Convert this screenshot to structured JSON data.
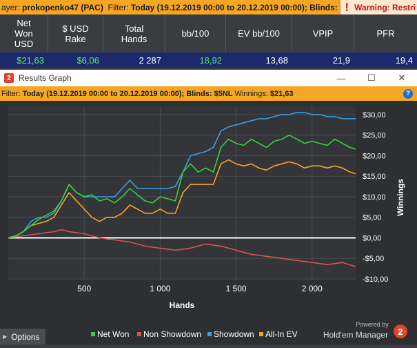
{
  "topbar": {
    "player_label": "ayer:",
    "player": "prokopenko47 (PAC)",
    "filter_label": "Filter:",
    "filter": "Today (19.12.2019 00:00 to 20.12.2019 00:00); Blinds: $5NL",
    "warning": "Warning: Restri"
  },
  "stats": {
    "headers": [
      "Net\nWon\nUSD",
      "$ USD\nRake",
      "Total\nHands",
      "bb/100",
      "EV bb/100",
      "VPIP",
      "PFR"
    ],
    "values": [
      "$21,63",
      "$6,06",
      "2 287",
      "18,92",
      "13,68",
      "21,9",
      "19,4"
    ]
  },
  "window": {
    "title": "Results Graph",
    "minimize": "—",
    "maximize": "☐",
    "close": "✕"
  },
  "filterbar": {
    "label": "Filter:",
    "text": "Today (19.12.2019 00:00 to 20.12.2019 00:00); Blinds: $5NL",
    "winnings_label": "Winnings:",
    "winnings": "$21,63"
  },
  "bottom": {
    "options_label": "Options",
    "powered_by": "Powered by",
    "brand": "Hold'em Manager",
    "brand_badge": "2"
  },
  "colors": {
    "net_won": "#33d43a",
    "non_showdown": "#e05050",
    "showdown": "#3a9ee8",
    "all_in_ev": "#f5a623",
    "zero_line": "#ffffff"
  },
  "chart_data": {
    "type": "line",
    "xlabel": "Hands",
    "ylabel": "Winnings",
    "xlim": [
      0,
      2287
    ],
    "ylim": [
      -10,
      32
    ],
    "x_ticks": [
      500,
      1000,
      1500,
      2000
    ],
    "x_tick_labels": [
      "500",
      "1 000",
      "1 500",
      "2 000"
    ],
    "y_ticks": [
      30,
      25,
      20,
      15,
      10,
      5,
      0,
      -5,
      -10
    ],
    "y_tick_labels": [
      "$30,00",
      "$25,00",
      "$20,00",
      "$15,00",
      "$10,00",
      "$5,00",
      "$0,00",
      "-$5,00",
      "-$10,00"
    ],
    "grid": true,
    "legend_placement": "bottom",
    "series": [
      {
        "name": "Net Won",
        "x": [
          0,
          50,
          100,
          150,
          200,
          250,
          300,
          350,
          400,
          450,
          500,
          550,
          600,
          650,
          700,
          750,
          800,
          850,
          900,
          950,
          1000,
          1050,
          1100,
          1150,
          1200,
          1250,
          1300,
          1350,
          1400,
          1450,
          1500,
          1550,
          1600,
          1650,
          1700,
          1750,
          1800,
          1850,
          1900,
          1950,
          2000,
          2050,
          2100,
          2150,
          2200,
          2250,
          2287
        ],
        "y": [
          0,
          0.5,
          1.5,
          3,
          4.5,
          5.5,
          6.5,
          9,
          13,
          11,
          10,
          10.5,
          9,
          9.5,
          8.5,
          10,
          12,
          10.5,
          9,
          8.5,
          10,
          9.5,
          9,
          16,
          18,
          16,
          17,
          16,
          22,
          24,
          23,
          22.5,
          24,
          23,
          22,
          23.5,
          24,
          25,
          24,
          23,
          23.5,
          23,
          22.5,
          24,
          23,
          22,
          21.6
        ]
      },
      {
        "name": "Non Showdown",
        "x": [
          0,
          100,
          200,
          300,
          350,
          400,
          500,
          600,
          700,
          800,
          900,
          1000,
          1100,
          1200,
          1300,
          1400,
          1500,
          1600,
          1700,
          1800,
          1900,
          2000,
          2100,
          2200,
          2287
        ],
        "y": [
          0,
          0.5,
          1,
          1.5,
          2,
          1.5,
          1,
          0,
          -0.5,
          -1,
          -2,
          -2.5,
          -3,
          -2.5,
          -1.5,
          -2,
          -3,
          -4,
          -4.5,
          -5,
          -5.5,
          -6,
          -6.5,
          -6,
          -7
        ]
      },
      {
        "name": "Showdown",
        "x": [
          0,
          50,
          100,
          150,
          200,
          250,
          300,
          350,
          400,
          450,
          500,
          550,
          600,
          650,
          700,
          750,
          800,
          850,
          900,
          950,
          1000,
          1050,
          1100,
          1150,
          1200,
          1250,
          1300,
          1350,
          1400,
          1450,
          1500,
          1550,
          1600,
          1650,
          1700,
          1750,
          1800,
          1850,
          1900,
          1950,
          2000,
          2050,
          2100,
          2150,
          2200,
          2250,
          2287
        ],
        "y": [
          0,
          0.5,
          1.5,
          4,
          5,
          5,
          6,
          9,
          13,
          11,
          10,
          10,
          10,
          10,
          10,
          12,
          14,
          12,
          12,
          12,
          12,
          12,
          12.5,
          16,
          20,
          20.5,
          21,
          22,
          26,
          27,
          27.5,
          28,
          28.5,
          29,
          29,
          29.5,
          30,
          30,
          30.5,
          30.5,
          30,
          30,
          29.5,
          29.5,
          29,
          29,
          29
        ]
      },
      {
        "name": "All-In EV",
        "x": [
          0,
          50,
          100,
          150,
          200,
          250,
          300,
          350,
          400,
          450,
          500,
          550,
          600,
          650,
          700,
          750,
          800,
          850,
          900,
          950,
          1000,
          1050,
          1100,
          1150,
          1200,
          1250,
          1300,
          1350,
          1400,
          1450,
          1500,
          1550,
          1600,
          1650,
          1700,
          1750,
          1800,
          1850,
          1900,
          1950,
          2000,
          2050,
          2100,
          2150,
          2200,
          2250,
          2287
        ],
        "y": [
          0,
          0.5,
          1.5,
          3,
          3.5,
          4,
          5,
          8,
          11,
          9,
          7,
          5,
          4,
          5,
          5,
          6,
          8,
          7,
          6,
          6,
          7,
          6,
          6,
          11,
          13,
          13,
          13,
          13,
          18,
          19,
          18,
          17.5,
          18,
          17,
          16.5,
          17.5,
          18,
          18.5,
          18,
          17,
          17.5,
          17.5,
          17,
          17.5,
          17,
          16,
          15.6
        ]
      }
    ]
  }
}
